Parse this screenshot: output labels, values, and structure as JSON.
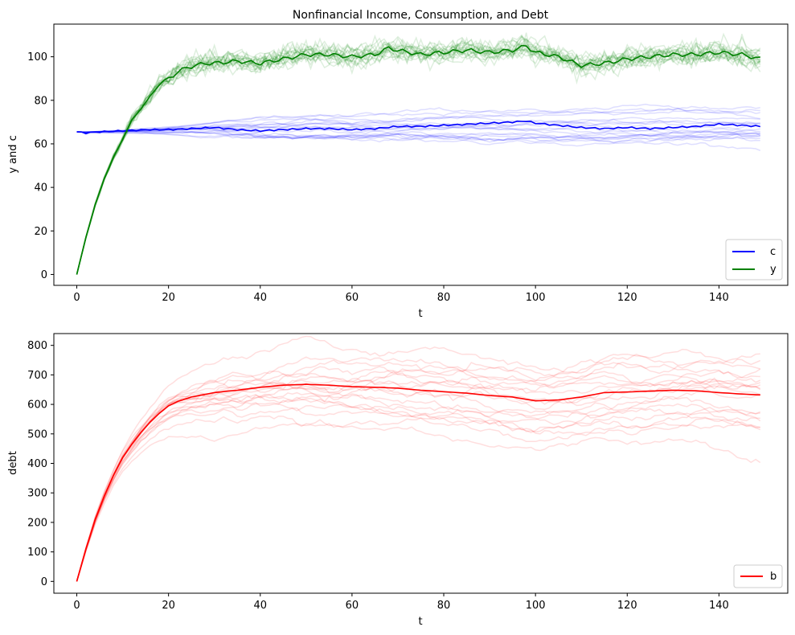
{
  "colors": {
    "c": "#0000ff",
    "y": "#008000",
    "b": "#ff0000",
    "axis": "#000000",
    "legend_border": "#cccccc"
  },
  "chart_data": [
    {
      "type": "line",
      "title": "Nonfinancial Income, Consumption, and Debt",
      "xlabel": "t",
      "ylabel": "y and c",
      "xlim": [
        -5,
        155
      ],
      "ylim": [
        -5,
        115
      ],
      "xticks": [
        0,
        20,
        40,
        60,
        80,
        100,
        120,
        140
      ],
      "yticks": [
        0,
        20,
        40,
        60,
        80,
        100
      ],
      "grid": false,
      "legend_position": "lower right",
      "legend": [
        "c",
        "y"
      ],
      "background_paths": "about 20 faint simulated paths per variable",
      "series": [
        {
          "name": "c",
          "color": "#0000ff",
          "x": [
            0,
            2,
            5,
            10,
            15,
            20,
            25,
            30,
            35,
            40,
            45,
            50,
            55,
            60,
            65,
            70,
            75,
            80,
            85,
            90,
            95,
            98,
            100,
            105,
            110,
            115,
            120,
            125,
            130,
            135,
            140,
            145,
            149
          ],
          "y": [
            65.5,
            65.0,
            65.5,
            66.0,
            66.5,
            66.5,
            67.0,
            67.5,
            66.5,
            66.0,
            66.5,
            67.0,
            67.0,
            66.5,
            67.0,
            68.0,
            68.0,
            68.5,
            69.0,
            69.5,
            70.0,
            70.5,
            69.5,
            68.5,
            67.5,
            67.0,
            67.5,
            67.0,
            67.5,
            68.0,
            69.0,
            68.5,
            68.0
          ]
        },
        {
          "name": "y",
          "color": "#008000",
          "x": [
            0,
            2,
            4,
            6,
            8,
            10,
            12,
            14,
            16,
            18,
            20,
            22,
            24,
            26,
            28,
            30,
            35,
            40,
            45,
            50,
            55,
            60,
            65,
            68,
            70,
            75,
            80,
            85,
            90,
            95,
            98,
            100,
            105,
            110,
            115,
            120,
            125,
            130,
            135,
            140,
            145,
            149
          ],
          "y": [
            0,
            17,
            32,
            44,
            54,
            62,
            71,
            76,
            82,
            87,
            90,
            93,
            95,
            96,
            97,
            97,
            98,
            97,
            99,
            101,
            101,
            100,
            101,
            104,
            103,
            101,
            102,
            103,
            102,
            103,
            105,
            102,
            100,
            96,
            97,
            99,
            100,
            101,
            101,
            102,
            101,
            99
          ]
        }
      ]
    },
    {
      "type": "line",
      "title": "",
      "xlabel": "t",
      "ylabel": "debt",
      "xlim": [
        -5,
        155
      ],
      "ylim": [
        -40,
        840
      ],
      "xticks": [
        0,
        20,
        40,
        60,
        80,
        100,
        120,
        140
      ],
      "yticks": [
        0,
        100,
        200,
        300,
        400,
        500,
        600,
        700,
        800
      ],
      "grid": false,
      "legend_position": "lower right",
      "legend": [
        "b"
      ],
      "series": [
        {
          "name": "b",
          "color": "#ff0000",
          "x": [
            0,
            2,
            4,
            6,
            8,
            10,
            12,
            14,
            16,
            18,
            20,
            22,
            25,
            30,
            35,
            40,
            45,
            50,
            55,
            60,
            65,
            70,
            75,
            80,
            85,
            90,
            95,
            100,
            105,
            110,
            115,
            120,
            125,
            130,
            135,
            140,
            145,
            149
          ],
          "y": [
            0,
            110,
            210,
            290,
            360,
            420,
            465,
            505,
            540,
            570,
            595,
            610,
            625,
            640,
            648,
            658,
            665,
            668,
            665,
            660,
            658,
            655,
            648,
            643,
            638,
            630,
            625,
            612,
            615,
            625,
            640,
            642,
            645,
            648,
            646,
            640,
            635,
            632
          ]
        }
      ]
    }
  ]
}
